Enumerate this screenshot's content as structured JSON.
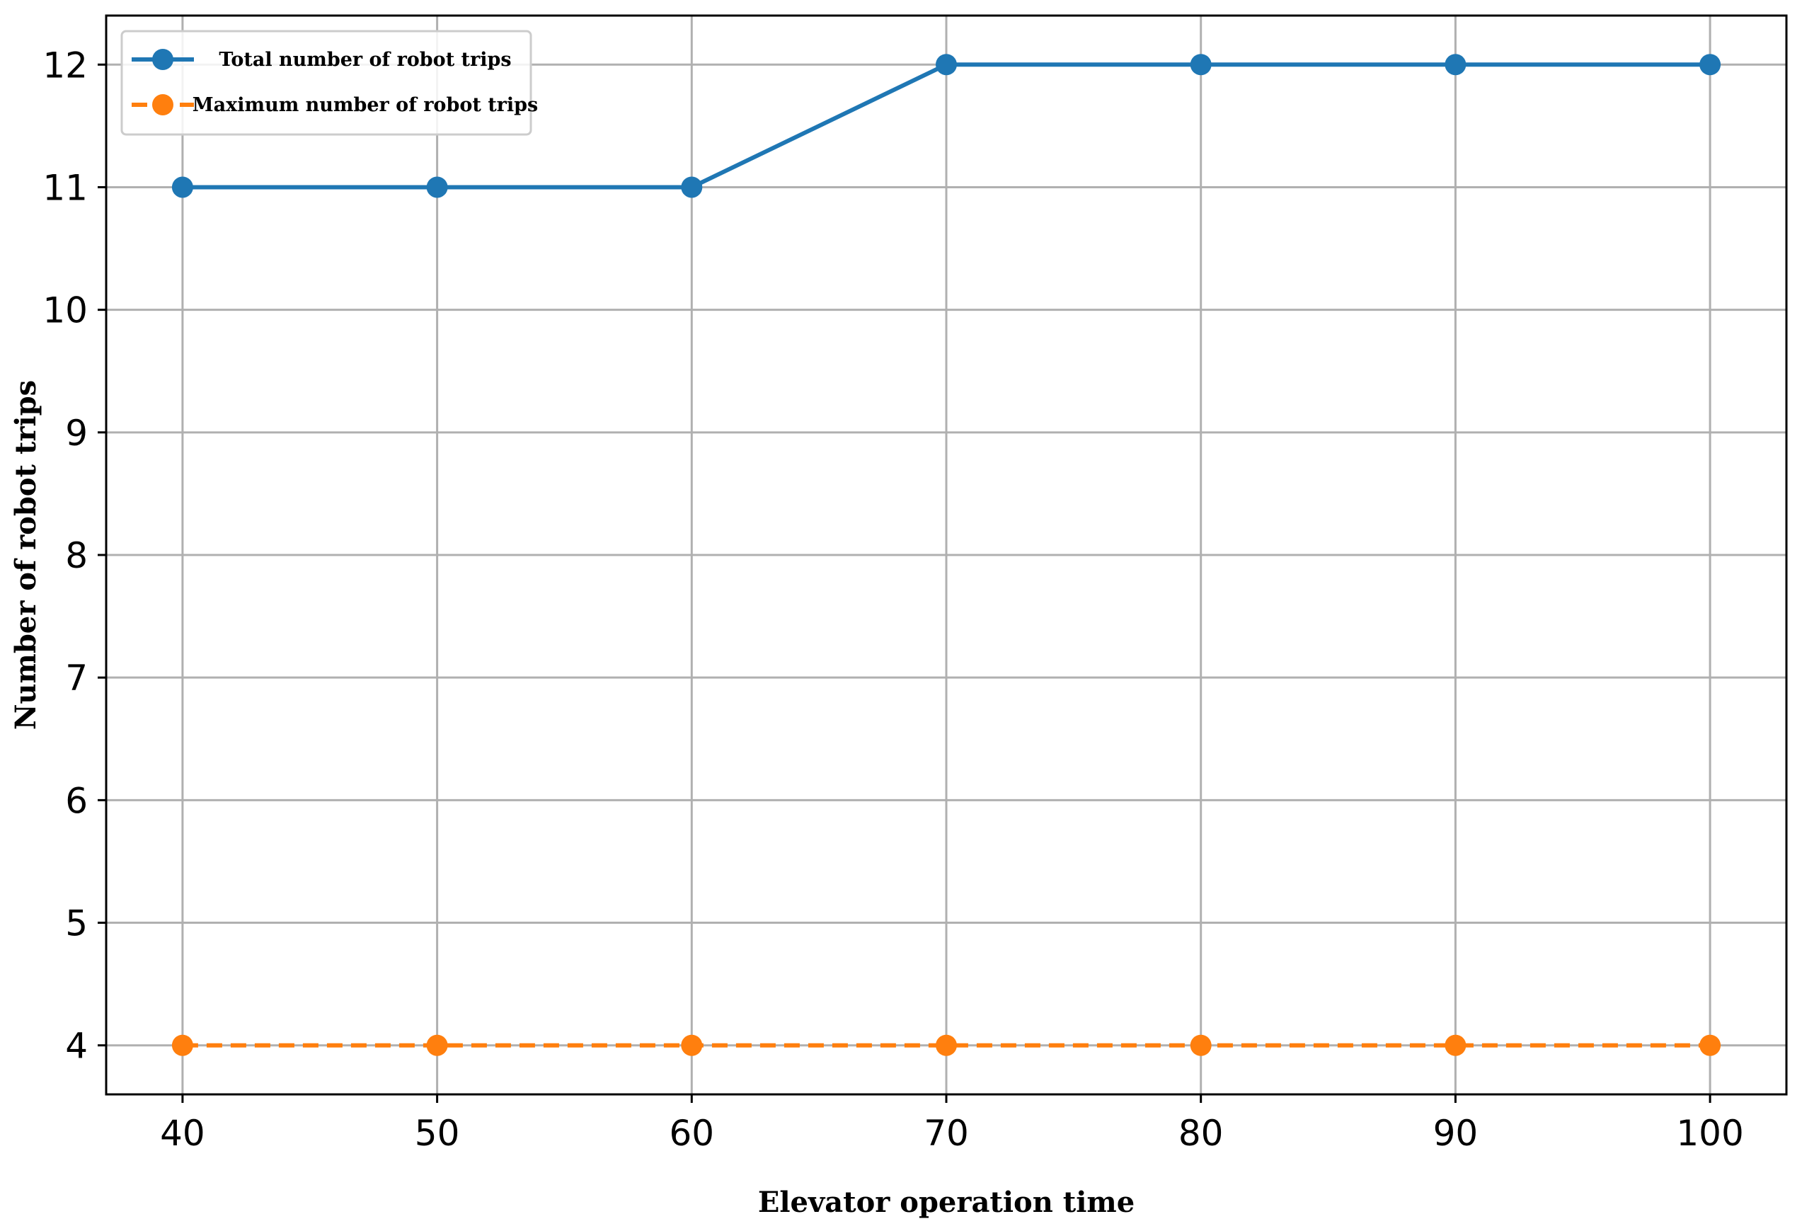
{
  "chart_data": {
    "type": "line",
    "xlabel": "Elevator operation time",
    "ylabel": "Number of robot trips",
    "x": [
      40,
      50,
      60,
      70,
      80,
      90,
      100
    ],
    "xlim": [
      37,
      103
    ],
    "ylim": [
      3.6,
      12.4
    ],
    "xticks": [
      40,
      50,
      60,
      70,
      80,
      90,
      100
    ],
    "yticks": [
      4,
      5,
      6,
      7,
      8,
      9,
      10,
      11,
      12
    ],
    "grid": true,
    "legend_position": "top-left",
    "series": [
      {
        "name": "Total number of robot trips",
        "values": [
          11,
          11,
          11,
          12,
          12,
          12,
          12
        ],
        "color": "#1f77b4",
        "line_style": "solid",
        "marker": "circle"
      },
      {
        "name": "Maximum number of robot trips",
        "values": [
          4,
          4,
          4,
          4,
          4,
          4,
          4
        ],
        "color": "#ff7f0e",
        "line_style": "dashed",
        "marker": "circle"
      }
    ]
  }
}
